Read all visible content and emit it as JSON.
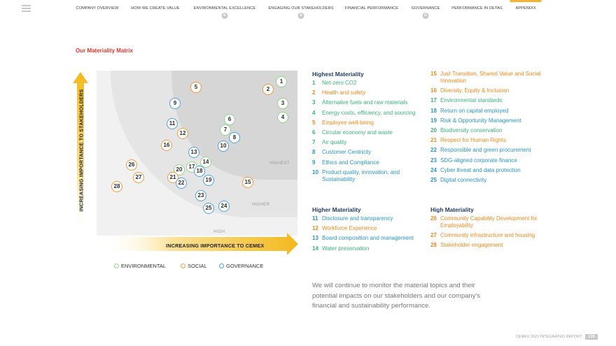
{
  "nav": {
    "items": [
      {
        "label": "COMPANY OVERVIEW"
      },
      {
        "label": "HOW WE CREATE VALUE"
      },
      {
        "label": "ENVIRONMENTAL EXCELLENCE",
        "badge": "E"
      },
      {
        "label": "ENGAGING OUR STAKEHOLDERS",
        "badge": "S"
      },
      {
        "label": "FINANCIAL PERFORMANCE"
      },
      {
        "label": "GOVERNANCE",
        "badge": "G"
      },
      {
        "label": "PERFORMANCE IN DETAIL"
      },
      {
        "label": "APPENDIX",
        "active": true
      }
    ],
    "accent_color": "#f5b335"
  },
  "page_title": "Our Materiality Matrix",
  "matrix": {
    "x_axis_label": "INCREASING IMPORTANCE TO CEMEX",
    "y_axis_label": "INCREASING IMPORTANCE TO STAKEHOLDERS",
    "zones": [
      "HIGH",
      "HIGHER",
      "HIGHEST"
    ],
    "bubbles": [
      {
        "n": "1",
        "cat": "env"
      },
      {
        "n": "2",
        "cat": "soc"
      },
      {
        "n": "3",
        "cat": "env"
      },
      {
        "n": "4",
        "cat": "env"
      },
      {
        "n": "5",
        "cat": "soc"
      },
      {
        "n": "6",
        "cat": "env"
      },
      {
        "n": "7",
        "cat": "env"
      },
      {
        "n": "8",
        "cat": "gov"
      },
      {
        "n": "9",
        "cat": "gov"
      },
      {
        "n": "10",
        "cat": "gov"
      },
      {
        "n": "11",
        "cat": "gov"
      },
      {
        "n": "12",
        "cat": "soc"
      },
      {
        "n": "13",
        "cat": "gov"
      },
      {
        "n": "14",
        "cat": "env"
      },
      {
        "n": "15",
        "cat": "soc"
      },
      {
        "n": "16",
        "cat": "soc"
      },
      {
        "n": "17",
        "cat": "env"
      },
      {
        "n": "18",
        "cat": "gov"
      },
      {
        "n": "19",
        "cat": "gov"
      },
      {
        "n": "20",
        "cat": "env"
      },
      {
        "n": "21",
        "cat": "soc"
      },
      {
        "n": "22",
        "cat": "gov"
      },
      {
        "n": "23",
        "cat": "gov"
      },
      {
        "n": "24",
        "cat": "gov"
      },
      {
        "n": "25",
        "cat": "gov"
      },
      {
        "n": "26",
        "cat": "soc"
      },
      {
        "n": "27",
        "cat": "soc"
      },
      {
        "n": "28",
        "cat": "soc"
      }
    ],
    "legend": [
      {
        "label": "ENVIRONMENTAL",
        "color": "#8fd48a"
      },
      {
        "label": "SOCIAL",
        "color": "#ef9c3a"
      },
      {
        "label": "GOVERNANCE",
        "color": "#4aa3d9"
      }
    ]
  },
  "lists": {
    "highest_title": "Highest Materiality",
    "highest_left": [
      {
        "num": "1",
        "text": "Net-zero CO2",
        "cat": "env"
      },
      {
        "num": "2",
        "text": "Health and safety",
        "cat": "soc"
      },
      {
        "num": "3",
        "text": "Alternative fuels and raw materials",
        "cat": "env"
      },
      {
        "num": "4",
        "text": "Energy costs, efficiency, and sourcing",
        "cat": "env"
      },
      {
        "num": "5",
        "text": "Employee well-being",
        "cat": "soc"
      },
      {
        "num": "6",
        "text": "Circular economy and waste",
        "cat": "env"
      },
      {
        "num": "7",
        "text": "Air quality",
        "cat": "env"
      },
      {
        "num": "8",
        "text": "Customer Centricity",
        "cat": "gov"
      },
      {
        "num": "9",
        "text": "Ethics and Compliance",
        "cat": "gov"
      },
      {
        "num": "10",
        "text": "Product quality, innovation, and Sustainability",
        "cat": "gov"
      }
    ],
    "highest_right": [
      {
        "num": "15",
        "text": "Just Transition, Shared Value and Social Innovation",
        "cat": "soc"
      },
      {
        "num": "16",
        "text": "Diversity, Equity & Inclusion",
        "cat": "soc"
      },
      {
        "num": "17",
        "text": "Environmental standards",
        "cat": "env"
      },
      {
        "num": "18",
        "text": "Return on capital employed",
        "cat": "gov"
      },
      {
        "num": "19",
        "text": "Risk & Opportunity Management",
        "cat": "gov"
      },
      {
        "num": "20",
        "text": "Biodiversity conservation",
        "cat": "env"
      },
      {
        "num": "21",
        "text": "Respect for Human Rights",
        "cat": "soc"
      },
      {
        "num": "22",
        "text": "Responsible and green procurement",
        "cat": "gov"
      },
      {
        "num": "23",
        "text": "SDG-aligned corporate finance",
        "cat": "gov"
      },
      {
        "num": "24",
        "text": "Cyber threat and data protection",
        "cat": "gov"
      },
      {
        "num": "25",
        "text": "Digital connectivity",
        "cat": "gov"
      }
    ],
    "higher_title": "Higher Materiality",
    "higher": [
      {
        "num": "11",
        "text": "Disclosure and transparency",
        "cat": "gov"
      },
      {
        "num": "12",
        "text": "Workforce Experience",
        "cat": "soc"
      },
      {
        "num": "13",
        "text": "Board composition and management",
        "cat": "gov"
      },
      {
        "num": "14",
        "text": "Water preservation",
        "cat": "env"
      }
    ],
    "high_title": "High Materiality",
    "high": [
      {
        "num": "26",
        "text": "Community Capability Development for Employability",
        "cat": "soc"
      },
      {
        "num": "27",
        "text": "Community infrastructure and housing",
        "cat": "soc"
      },
      {
        "num": "28",
        "text": "Stakeholder engagement",
        "cat": "soc"
      }
    ]
  },
  "closing_text": "We will continue to monitor the material topics and their potential impacts on our stakeholders and our company's financial and sustainability performance.",
  "footer": {
    "report": "CEMEX 2022 INTEGRATED REPORT",
    "page": "220"
  }
}
